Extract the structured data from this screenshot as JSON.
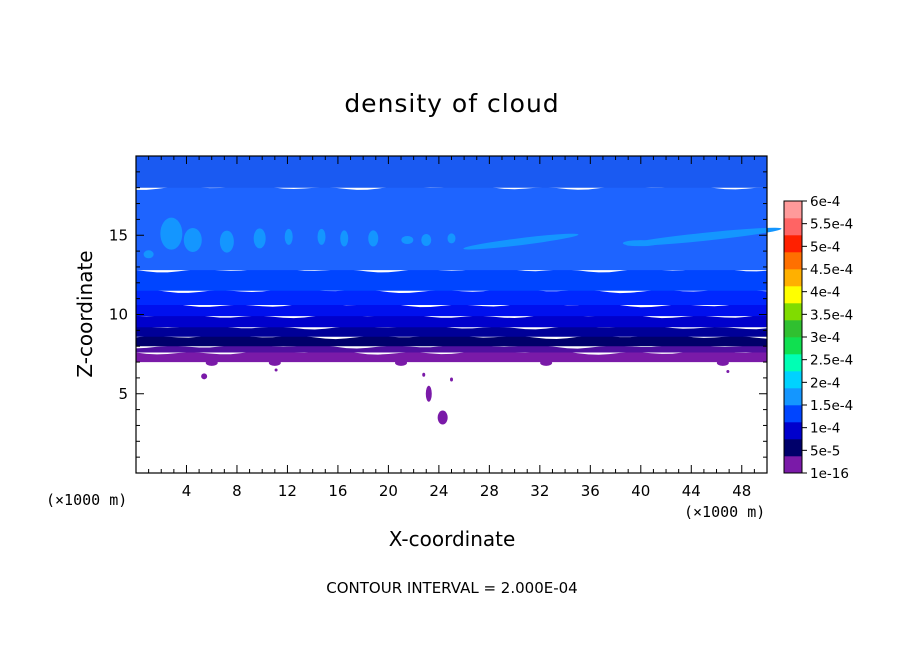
{
  "chart_data": {
    "type": "heatmap",
    "title": "density of cloud",
    "xlabel": "X-coordinate",
    "ylabel": "Z-coordinate",
    "x_unit": "(×1000 m)",
    "xlim": [
      0,
      50
    ],
    "ylim": [
      0,
      20
    ],
    "x_ticks": [
      4,
      8,
      12,
      16,
      20,
      24,
      28,
      32,
      36,
      40,
      44,
      48
    ],
    "y_ticks": [
      5,
      10,
      15
    ],
    "colorbar": {
      "labels": [
        "1e-16",
        "5e-5",
        "1e-4",
        "1.5e-4",
        "2e-4",
        "2.5e-4",
        "3e-4",
        "3.5e-4",
        "4e-4",
        "4.5e-4",
        "5e-4",
        "5.5e-4",
        "6e-4"
      ],
      "colors": [
        "#7a1aa8",
        "#00006a",
        "#0000cc",
        "#0045ff",
        "#1496ff",
        "#00d2ff",
        "#00ffb4",
        "#10e050",
        "#30c030",
        "#80dc00",
        "#ffff00",
        "#ffb000",
        "#ff7000",
        "#ff2000",
        "#ff6464",
        "#ff9a9a"
      ]
    },
    "bands": [
      {
        "level": "1e-16",
        "z_bottom": 7.0,
        "z_top": 7.6,
        "color": "#7a1aa8"
      },
      {
        "level": "1e-16",
        "z_bottom": 7.6,
        "z_top": 8.0,
        "color": "#5010a0"
      },
      {
        "level": "5e-5",
        "z_bottom": 8.0,
        "z_top": 8.6,
        "color": "#00006a"
      },
      {
        "level": "5e-5",
        "z_bottom": 8.6,
        "z_top": 9.2,
        "color": "#000098"
      },
      {
        "level": "1e-4",
        "z_bottom": 9.2,
        "z_top": 9.9,
        "color": "#0000cc"
      },
      {
        "level": "1e-4",
        "z_bottom": 9.9,
        "z_top": 10.6,
        "color": "#0010ee"
      },
      {
        "level": "1e-4",
        "z_bottom": 10.6,
        "z_top": 11.5,
        "color": "#0028ff"
      },
      {
        "level": "1.5e-4",
        "z_bottom": 11.5,
        "z_top": 12.8,
        "color": "#0045ff"
      },
      {
        "level": "1.5e-4",
        "z_bottom": 12.8,
        "z_top": 18.0,
        "color": "#1e64ff"
      },
      {
        "level": "1.5e-4",
        "z_bottom": 18.0,
        "z_top": 20.0,
        "color": "#1a5af2"
      }
    ],
    "patches": [
      {
        "level": "1.5e-4",
        "z": 15.0,
        "x_start": 1.0,
        "x_end": 10.0,
        "color": "#1496ff"
      },
      {
        "level": "1.5e-4",
        "z": 14.7,
        "x_start": 26.0,
        "x_end": 35.0,
        "color": "#1496ff"
      },
      {
        "level": "1.5e-4",
        "z": 14.9,
        "x_start": 38.0,
        "x_end": 50.0,
        "color": "#1496ff"
      }
    ],
    "footer": "CONTOUR INTERVAL = 2.000E-04"
  }
}
